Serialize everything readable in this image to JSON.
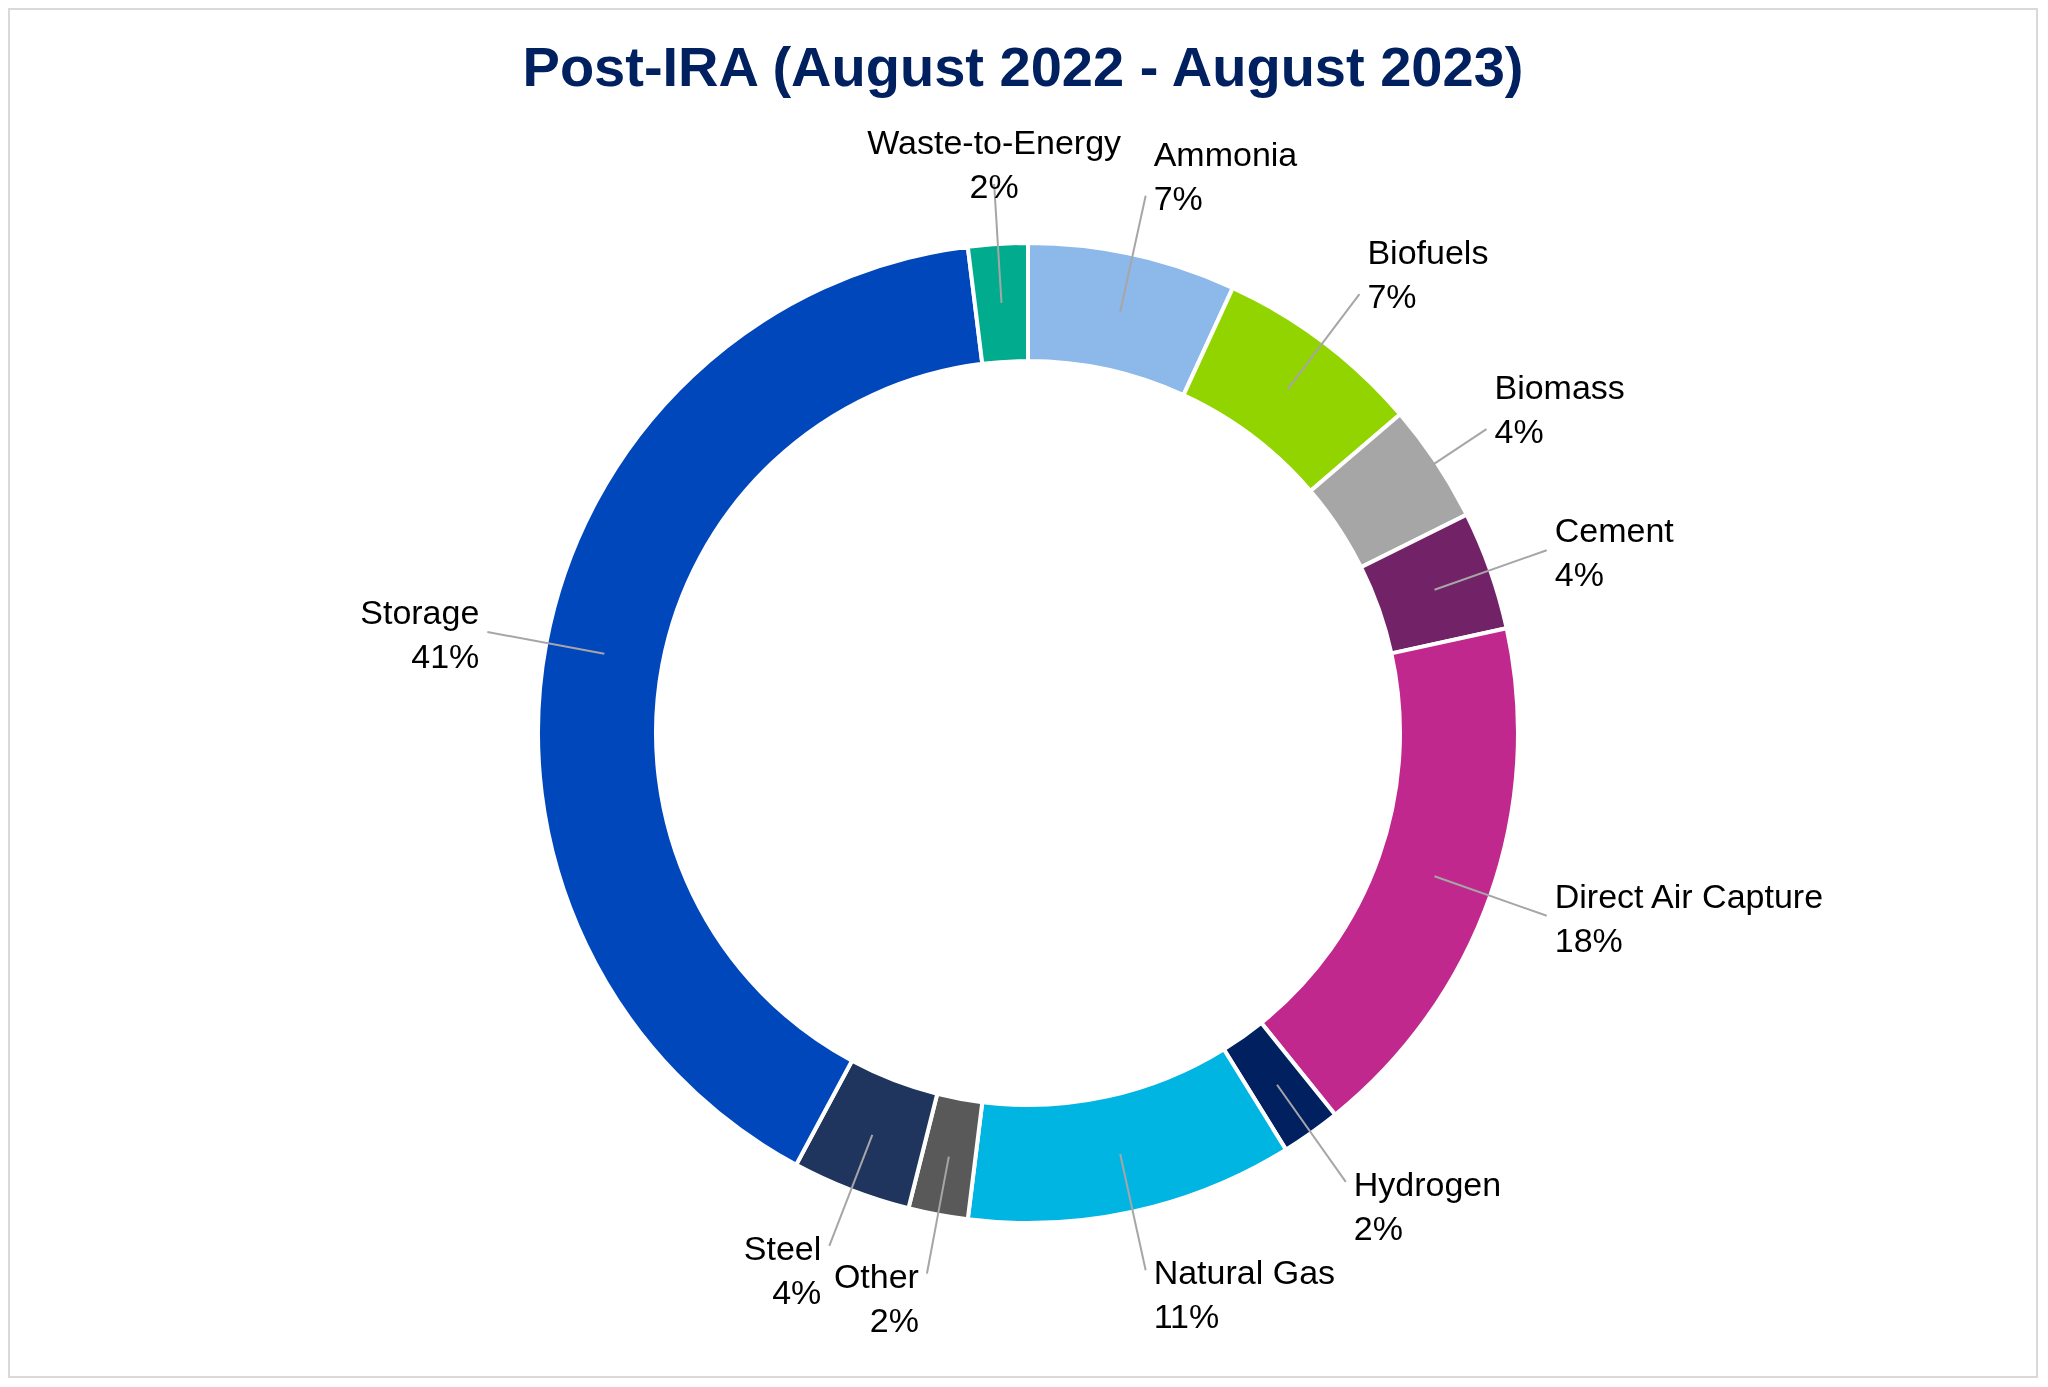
{
  "chart_data": {
    "type": "donut",
    "title": "Post-IRA (August 2022 - August 2023)",
    "categories": [
      "Ammonia",
      "Biofuels",
      "Biomass",
      "Cement",
      "Direct Air Capture",
      "Hydrogen",
      "Natural Gas",
      "Other",
      "Steel",
      "Storage",
      "Waste-to-Energy"
    ],
    "values": [
      7,
      7,
      4,
      4,
      18,
      2,
      11,
      2,
      4,
      41,
      2
    ],
    "value_labels": [
      "7%",
      "7%",
      "4%",
      "4%",
      "18%",
      "2%",
      "11%",
      "2%",
      "4%",
      "41%",
      "2%"
    ],
    "colors": [
      "#8db8ea",
      "#92d400",
      "#a6a6a6",
      "#722266",
      "#c0288e",
      "#002060",
      "#00b5e2",
      "#595959",
      "#1f355e",
      "#0047bb",
      "#00ab8e"
    ]
  }
}
